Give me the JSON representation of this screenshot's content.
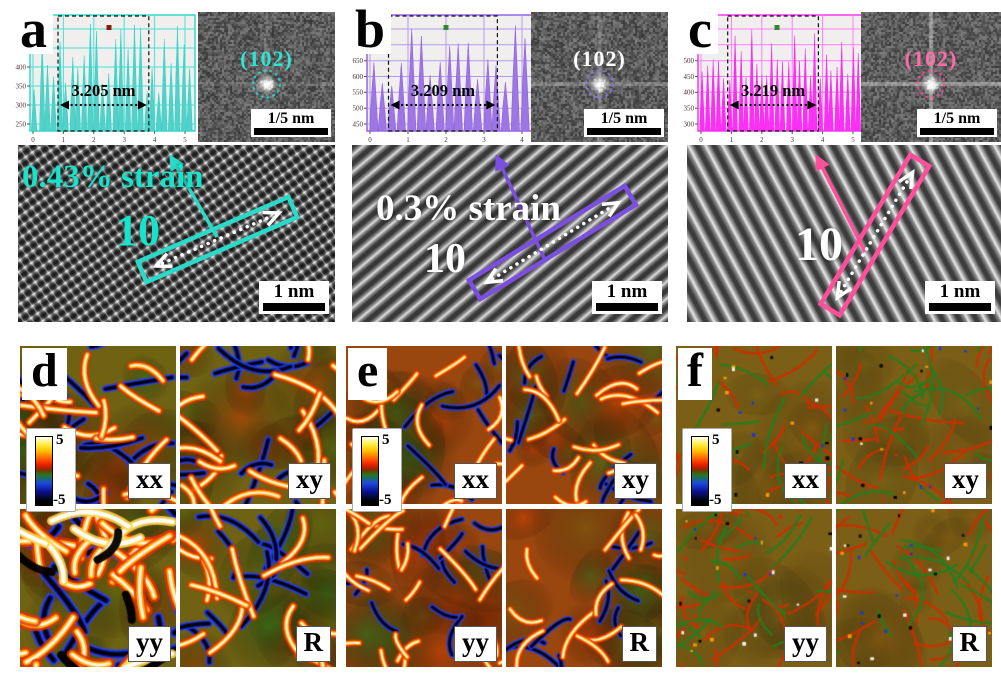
{
  "figure": {
    "panels_top": [
      {
        "label": "a",
        "accent": "#25d6c6",
        "profile": {
          "fill": "#55cfc8",
          "grid": "#45e2d6",
          "marker_color": "#8b1a0a",
          "y_ticks": [
            "500",
            "450",
            "400",
            "350",
            "300",
            "250"
          ],
          "x_ticks": [
            "0",
            "1",
            "2",
            "3",
            "4",
            "5"
          ],
          "measurement": "3.205 nm"
        },
        "fft": {
          "reflection_label": "(102)",
          "label_color": "#2ee4d2",
          "circle_color": "#2ee4d2",
          "scalebar_label": "1/5 nm"
        },
        "image": {
          "strain_label": "0.43% strain",
          "strain_color": "#17e2ca",
          "profile_number": "10",
          "number_color": "#17e2ca",
          "scalebar_label": "1 nm",
          "box_color": "#2bd9c9"
        }
      },
      {
        "label": "b",
        "accent": "#8a5ce0",
        "profile": {
          "fill": "#9d76e4",
          "grid": "#b49aec",
          "marker_color": "#2e8b2e",
          "y_ticks": [
            "750",
            "700",
            "650",
            "600",
            "550",
            "500",
            "450"
          ],
          "x_ticks": [
            "0",
            "1",
            "2",
            "3",
            "4"
          ],
          "measurement": "3.209 nm"
        },
        "fft": {
          "reflection_label": "(102)",
          "label_color": "#ffffff",
          "circle_color": "#8f7bf0",
          "scalebar_label": "1/5 nm"
        },
        "image": {
          "strain_label": "0.3% strain",
          "strain_color": "#ffffff",
          "profile_number": "10",
          "number_color": "#ffffff",
          "scalebar_label": "1 nm",
          "box_color": "#7b4fe0"
        }
      },
      {
        "label": "c",
        "accent": "#f32cf0",
        "profile": {
          "fill": "#fb30f5",
          "grid": "#ff7dfb",
          "marker_color": "#2e8b2e",
          "y_ticks": [
            "600",
            "550",
            "500",
            "450",
            "400",
            "350",
            "300"
          ],
          "x_ticks": [
            "0",
            "1",
            "2",
            "3",
            "4",
            "5"
          ],
          "measurement": "3.219 nm"
        },
        "fft": {
          "reflection_label": "(102)",
          "label_color": "#ff6ba6",
          "circle_color": "#ff4f98",
          "scalebar_label": "1/5 nm"
        },
        "image": {
          "profile_number": "10",
          "number_color": "#ffffff",
          "scalebar_label": "1 nm",
          "box_color": "#ff4f9b"
        }
      }
    ],
    "panels_bottom": [
      {
        "label": "d",
        "colorbar": {
          "max": "5",
          "min": "-5"
        },
        "quad_labels": [
          "xx",
          "xy",
          "yy",
          "R"
        ]
      },
      {
        "label": "e",
        "colorbar": {
          "max": "5",
          "min": "-5"
        },
        "quad_labels": [
          "xx",
          "xy",
          "yy",
          "R"
        ]
      },
      {
        "label": "f",
        "colorbar": {
          "max": "5",
          "min": "-5"
        },
        "quad_labels": [
          "xx",
          "xy",
          "yy",
          "R"
        ]
      }
    ]
  }
}
